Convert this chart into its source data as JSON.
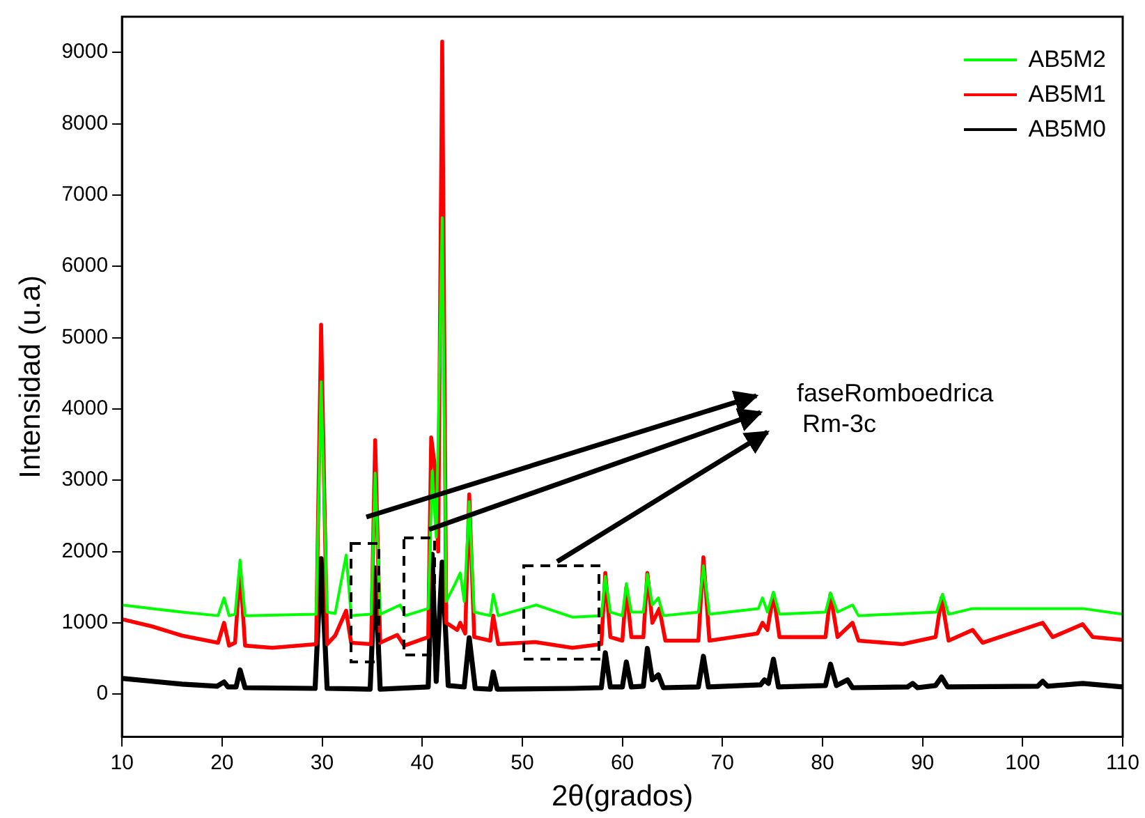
{
  "chart_data": {
    "type": "line",
    "xlabel": "2θ(grados)",
    "ylabel": "Intensidad (u.a)",
    "xlim": [
      10,
      110
    ],
    "xticks": [
      10,
      20,
      30,
      40,
      50,
      60,
      70,
      80,
      90,
      100,
      110
    ],
    "ylim": [
      -600,
      9500
    ],
    "yticks": [
      0,
      1000,
      2000,
      3000,
      4000,
      5000,
      6000,
      7000,
      8000,
      9000
    ],
    "grid": false,
    "legend": "top right",
    "marker": "none",
    "line_style": "solid",
    "annotations": [
      "faseRomboedrica",
      "Rm-3c"
    ],
    "series": [
      {
        "name": "AB5M2",
        "color": "#00ff00",
        "x": [
          10,
          13,
          16,
          19.6,
          20.2,
          20.7,
          21.3,
          21.8,
          22.3,
          29.4,
          29.9,
          30.5,
          31.3,
          32.4,
          32.9,
          34.9,
          35.3,
          35.8,
          37.8,
          38.3,
          40.6,
          41.0,
          41.4,
          42.0,
          42.4,
          43.3,
          43.8,
          44.2,
          44.7,
          45.2,
          46.8,
          47.1,
          47.6,
          51.4,
          55,
          57.9,
          58.3,
          58.8,
          60.0,
          60.4,
          60.9,
          62.1,
          62.5,
          63.0,
          63.6,
          64.1,
          67.6,
          68.1,
          68.7,
          73.6,
          74,
          74.5,
          75.1,
          75.7,
          80.3,
          80.8,
          81.5,
          83,
          83.6,
          91.4,
          92,
          92.6,
          95,
          102,
          106,
          110
        ],
        "values": [
          1250,
          1200,
          1150,
          1100,
          1350,
          1100,
          1120,
          1880,
          1100,
          1120,
          4380,
          1150,
          1130,
          1950,
          1100,
          1120,
          3100,
          1120,
          1250,
          1100,
          1200,
          3130,
          2200,
          6680,
          1300,
          1550,
          1700,
          1300,
          2700,
          1150,
          1100,
          1400,
          1100,
          1250,
          1080,
          1100,
          1650,
          1150,
          1100,
          1550,
          1150,
          1150,
          1680,
          1250,
          1350,
          1100,
          1150,
          1800,
          1120,
          1200,
          1350,
          1150,
          1430,
          1120,
          1150,
          1420,
          1150,
          1250,
          1100,
          1150,
          1400,
          1120,
          1200,
          1200,
          1200,
          1120
        ]
      },
      {
        "name": "AB5M1",
        "color": "#ff0000",
        "x": [
          10,
          13,
          16,
          19.6,
          20.2,
          20.7,
          21.3,
          21.8,
          22.3,
          25,
          29.4,
          29.9,
          30.5,
          31.3,
          32.4,
          32.9,
          34.9,
          35.3,
          35.8,
          37.5,
          38.2,
          40.6,
          40.9,
          41.3,
          41.6,
          42.0,
          42.4,
          43.5,
          43.8,
          44.3,
          44.7,
          45.2,
          46.8,
          47.1,
          47.6,
          51.3,
          55,
          57.9,
          58.3,
          58.8,
          60.0,
          60.4,
          60.9,
          62.1,
          62.5,
          63.0,
          63.7,
          64.3,
          67.6,
          68.1,
          68.7,
          73.5,
          74,
          74.5,
          75.1,
          75.7,
          80.3,
          80.8,
          81.5,
          83,
          83.6,
          88,
          91.3,
          91.9,
          92.6,
          95,
          96,
          102,
          103,
          106,
          107,
          110
        ],
        "values": [
          1050,
          950,
          820,
          720,
          1000,
          680,
          720,
          1750,
          680,
          650,
          700,
          5180,
          700,
          820,
          1170,
          720,
          700,
          3560,
          720,
          830,
          680,
          800,
          3600,
          3150,
          2000,
          9150,
          1000,
          900,
          1000,
          850,
          2800,
          800,
          750,
          1100,
          700,
          730,
          650,
          700,
          1700,
          800,
          750,
          1500,
          800,
          800,
          1700,
          1000,
          1200,
          750,
          750,
          1920,
          750,
          850,
          1000,
          900,
          1400,
          800,
          800,
          1400,
          800,
          1000,
          750,
          700,
          800,
          1350,
          750,
          900,
          720,
          1000,
          800,
          980,
          800,
          760
        ]
      },
      {
        "name": "AB5M0",
        "color": "#000000",
        "x": [
          10,
          13,
          16,
          19.5,
          20.2,
          20.6,
          21.4,
          21.8,
          22.3,
          29.3,
          29.9,
          30.5,
          34.8,
          35.3,
          35.8,
          40.6,
          41.0,
          41.4,
          42.0,
          42.6,
          44.2,
          44.7,
          45.3,
          46.8,
          47.1,
          47.5,
          55,
          57.9,
          58.3,
          58.8,
          60.0,
          60.4,
          60.9,
          62.1,
          62.5,
          63.0,
          63.6,
          64.1,
          67.6,
          68.1,
          68.6,
          73.8,
          74.2,
          74.6,
          75.1,
          75.6,
          80.3,
          80.8,
          81.4,
          82.5,
          83.0,
          88.5,
          89,
          89.5,
          91.3,
          91.9,
          92.5,
          101.5,
          102,
          102.5,
          106,
          110
        ],
        "values": [
          220,
          180,
          140,
          110,
          170,
          100,
          100,
          340,
          90,
          80,
          1900,
          80,
          70,
          1770,
          70,
          100,
          1960,
          180,
          1850,
          120,
          100,
          790,
          80,
          70,
          310,
          70,
          80,
          90,
          580,
          100,
          100,
          450,
          100,
          110,
          640,
          200,
          270,
          90,
          100,
          530,
          100,
          130,
          200,
          150,
          490,
          100,
          120,
          420,
          120,
          200,
          90,
          100,
          150,
          90,
          120,
          240,
          100,
          110,
          180,
          110,
          150,
          100
        ]
      }
    ]
  }
}
